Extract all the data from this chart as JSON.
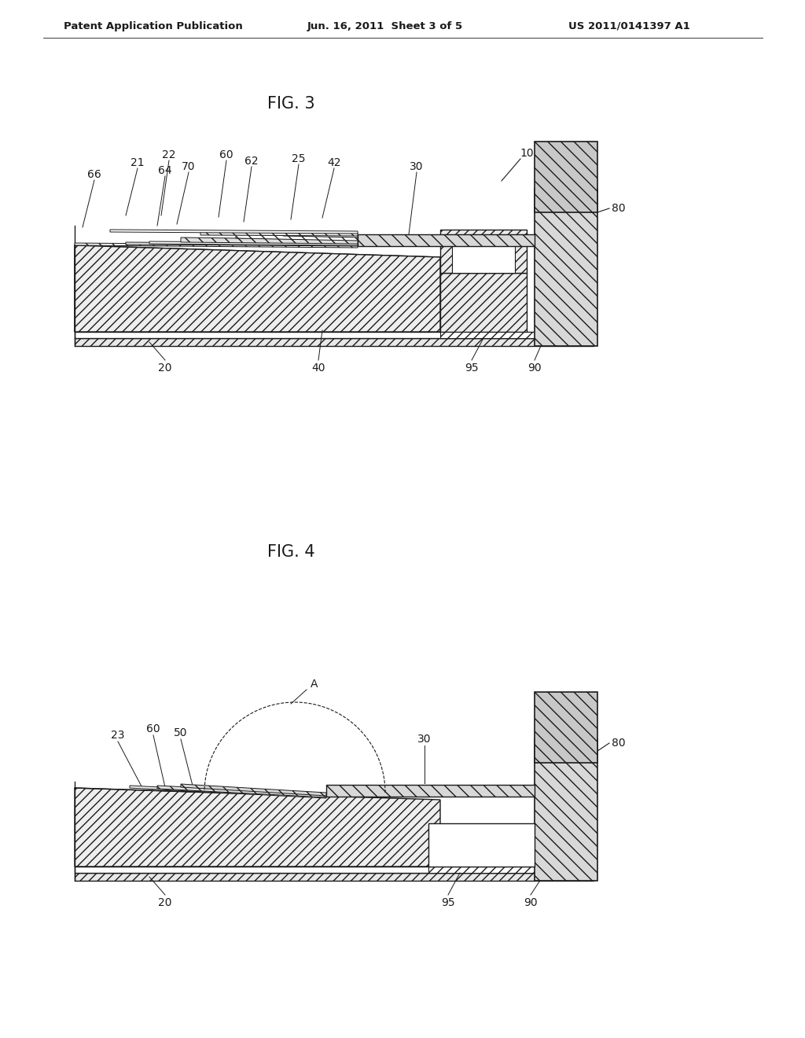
{
  "bg_color": "#ffffff",
  "header_left": "Patent Application Publication",
  "header_center": "Jun. 16, 2011  Sheet 3 of 5",
  "header_right": "US 2011/0141397 A1",
  "fig3_title": "FIG. 3",
  "fig4_title": "FIG. 4",
  "lc": "#1a1a1a"
}
